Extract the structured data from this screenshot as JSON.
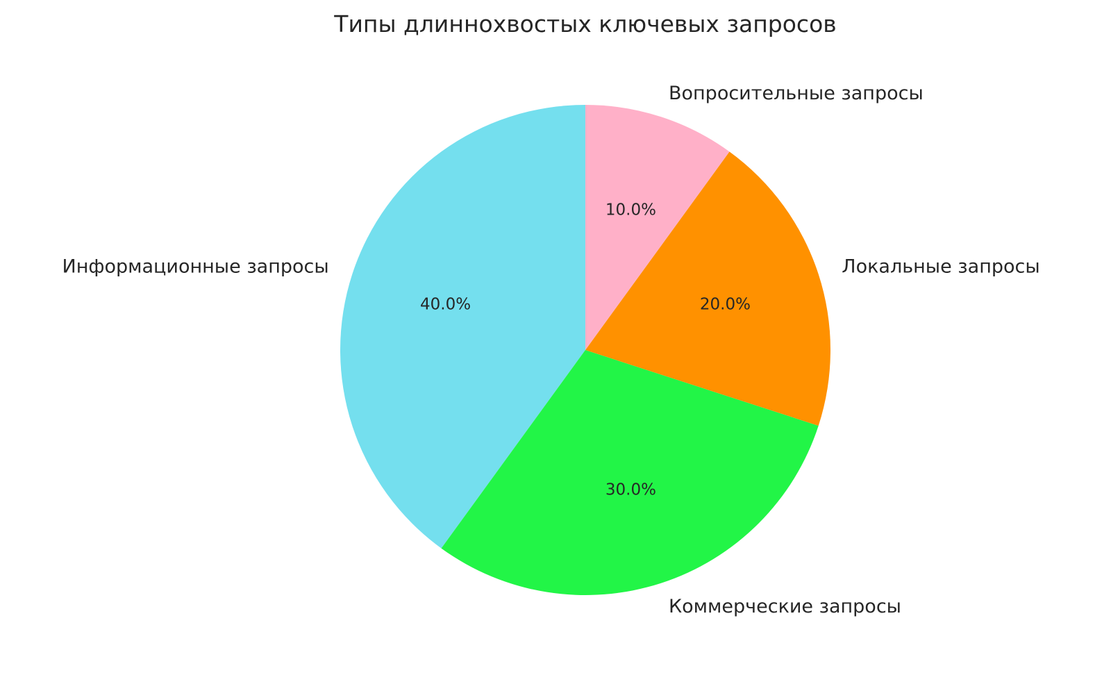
{
  "chart_data": {
    "type": "pie",
    "title": "Типы длиннохвостых ключевых запросов",
    "start_angle_deg": 90,
    "direction": "counterclockwise",
    "autopct_format": "%1.1f%%",
    "slices": [
      {
        "label": "Информационные запросы",
        "value": 40,
        "pct_label": "40.0%",
        "color": "#74dfee"
      },
      {
        "label": "Коммерческие запросы",
        "value": 30,
        "pct_label": "30.0%",
        "color": "#22f547"
      },
      {
        "label": "Локальные запросы",
        "value": 20,
        "pct_label": "20.0%",
        "color": "#ff9100"
      },
      {
        "label": "Вопросительные запросы",
        "value": 10,
        "pct_label": "10.0%",
        "color": "#ffb0c8"
      }
    ]
  }
}
